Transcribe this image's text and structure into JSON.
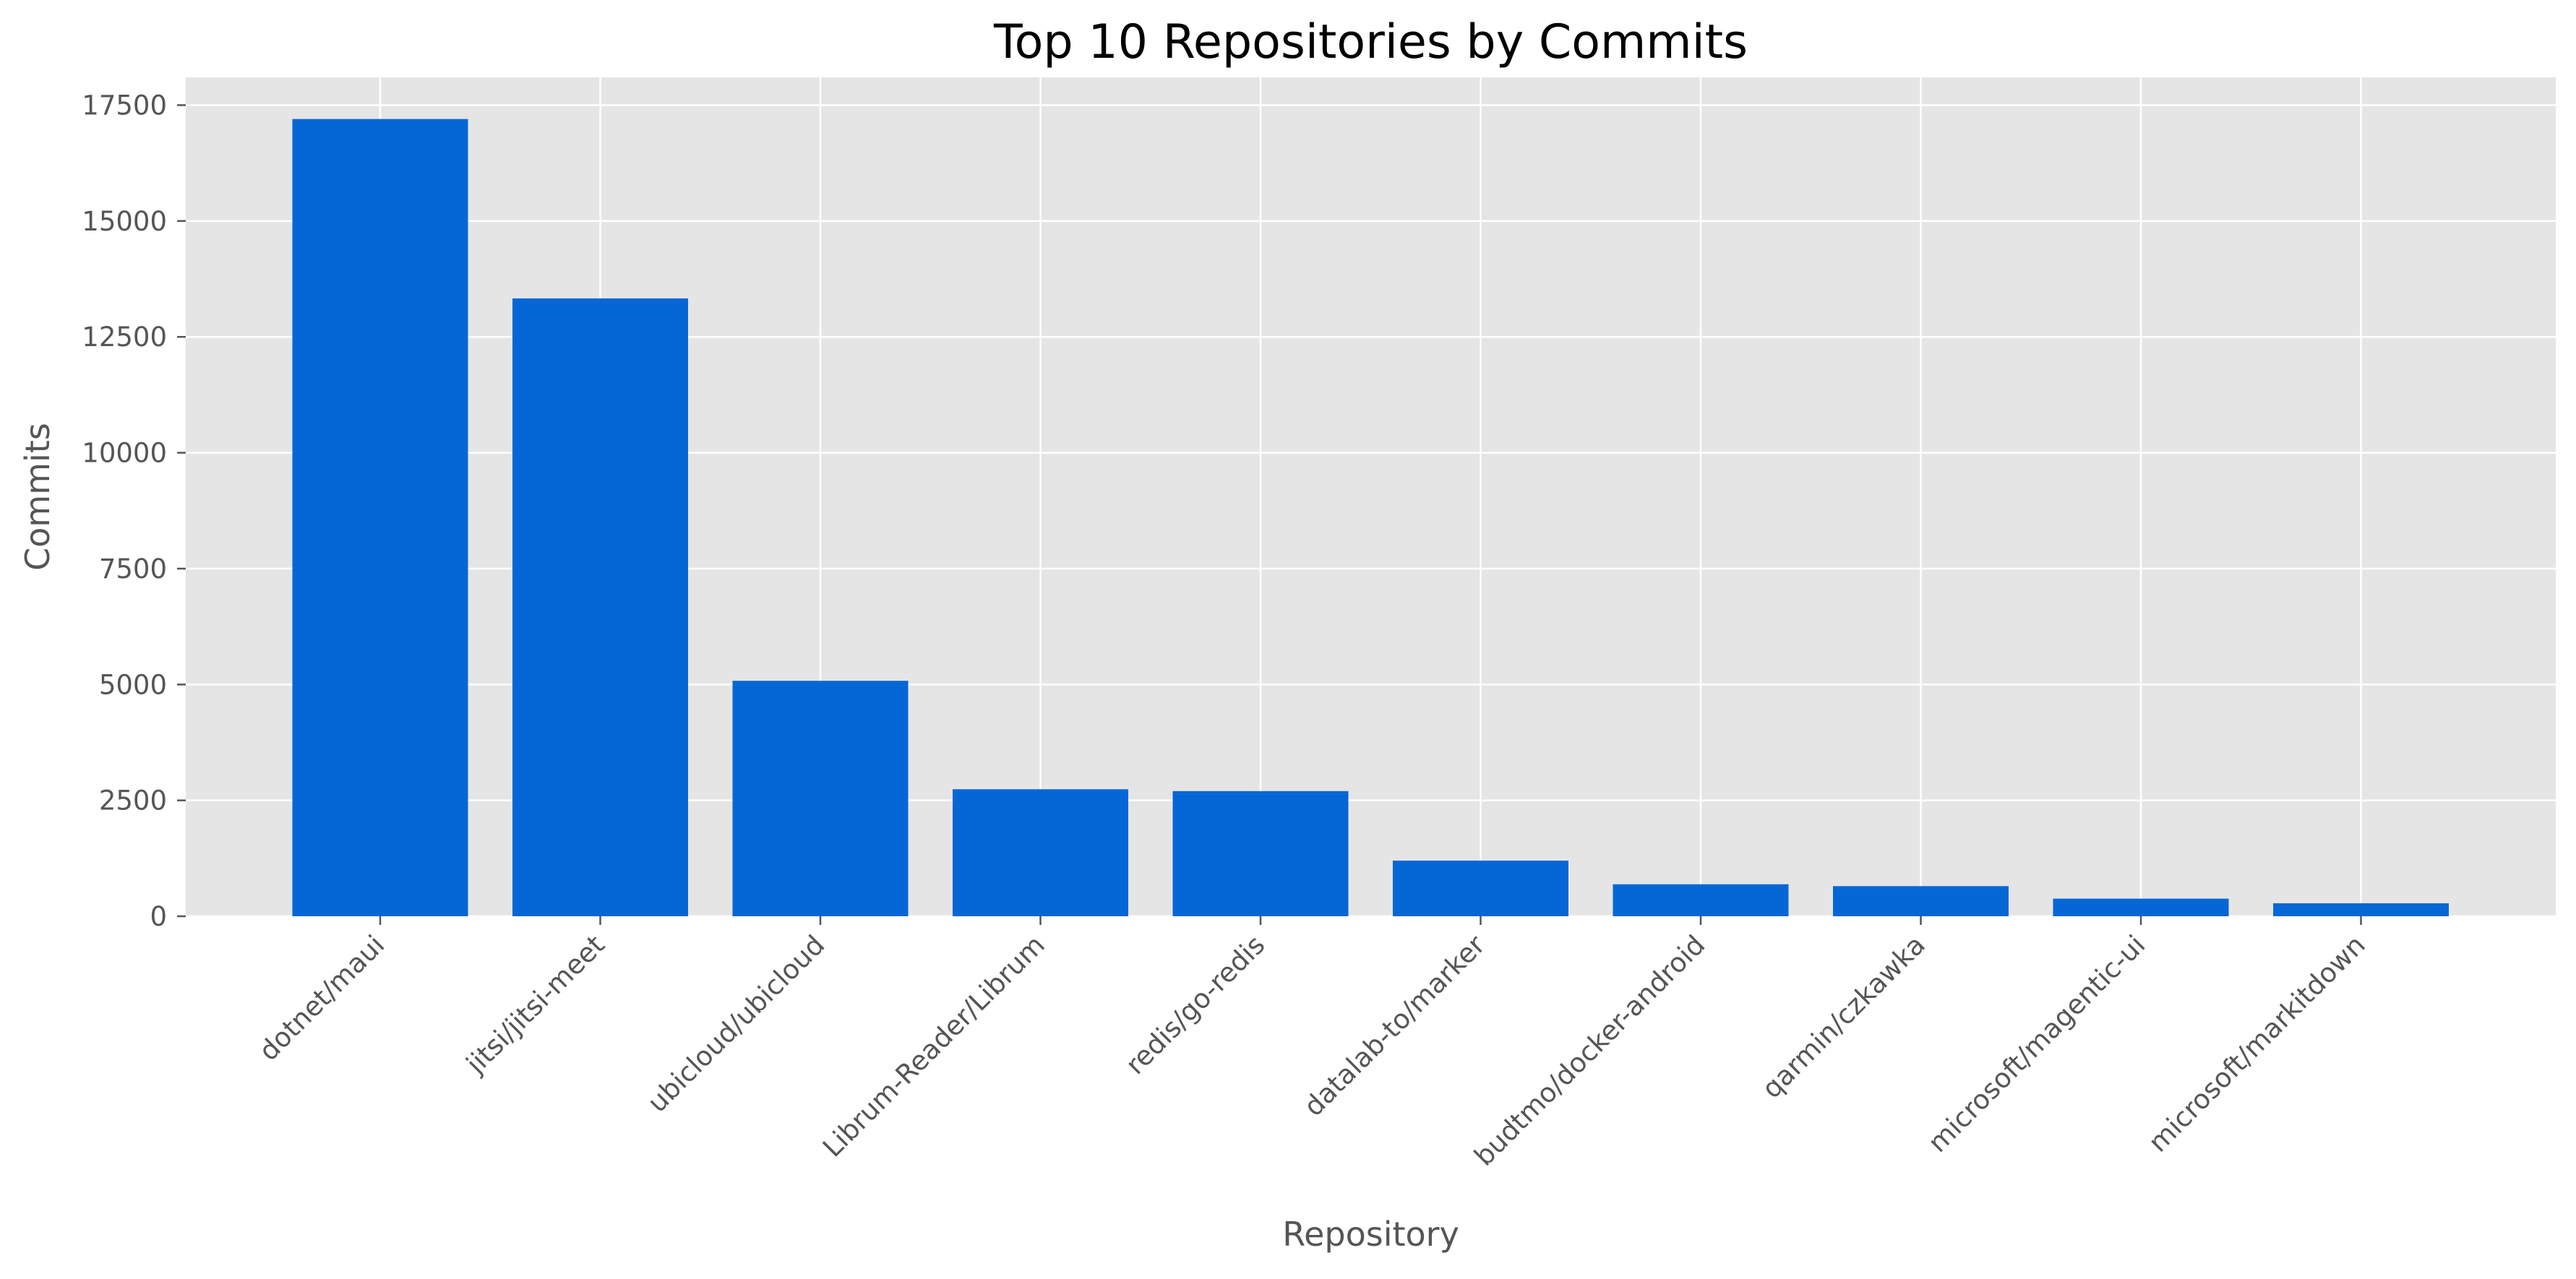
{
  "chart_data": {
    "type": "bar",
    "title": "Top 10 Repositories by Commits",
    "xlabel": "Repository",
    "ylabel": "Commits",
    "categories": [
      "dotnet/maui",
      "jitsi/jitsi-meet",
      "ubicloud/ubicloud",
      "Librum-Reader/Librum",
      "redis/go-redis",
      "datalab-to/marker",
      "budtmo/docker-android",
      "qarmin/czkawka",
      "microsoft/magentic-ui",
      "microsoft/markitdown"
    ],
    "values": [
      17200,
      13330,
      5080,
      2740,
      2700,
      1200,
      690,
      650,
      380,
      280
    ],
    "ylim": [
      0,
      18100
    ],
    "yticks": [
      0,
      2500,
      5000,
      7500,
      10000,
      12500,
      15000,
      17500
    ],
    "ytick_labels": [
      "0",
      "2500",
      "5000",
      "7500",
      "10000",
      "12500",
      "15000",
      "17500"
    ],
    "grid": true,
    "legend": "none",
    "colors": {
      "bar": "#0567d6",
      "plot_background": "#e5e5e5",
      "grid": "#ffffff",
      "tick_text": "#555555"
    }
  }
}
